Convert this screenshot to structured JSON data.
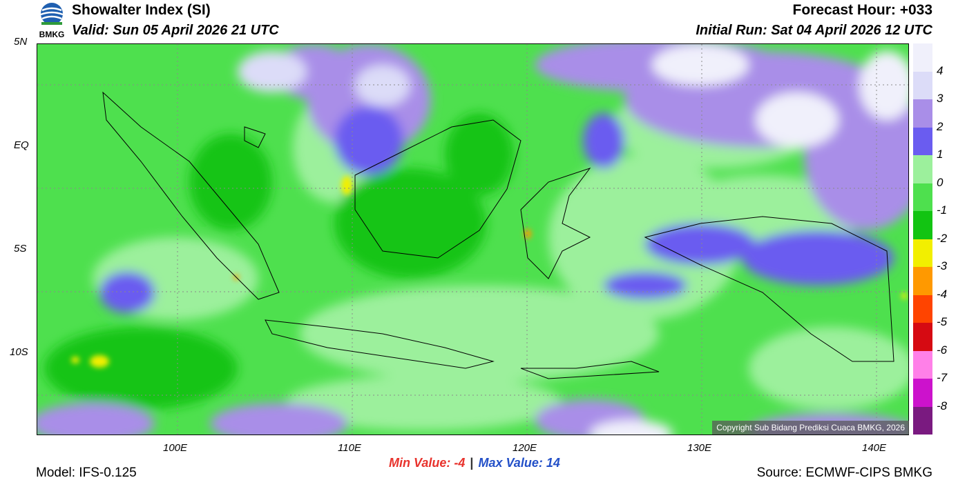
{
  "header": {
    "title": "Showalter Index (SI)",
    "valid": "Valid: Sun 05 April 2026 21 UTC",
    "forecast_hour": "Forecast Hour: +033",
    "initial_run": "Initial Run: Sat 04 April 2026 12 UTC"
  },
  "logo": {
    "text": "BMKG"
  },
  "map": {
    "lat_labels": [
      "5N",
      "EQ",
      "5S",
      "10S"
    ],
    "lon_labels": [
      "100E",
      "110E",
      "120E",
      "130E",
      "140E"
    ],
    "copyright": "Copyright Sub Bidang Prediksi Cuaca BMKG, 2026"
  },
  "colorbar": {
    "levels": [
      {
        "label": "4",
        "color": "#f0f0fb"
      },
      {
        "label": "3",
        "color": "#dcdcf8"
      },
      {
        "label": "2",
        "color": "#a98ee8"
      },
      {
        "label": "1",
        "color": "#6a5cf0"
      },
      {
        "label": "0",
        "color": "#9cf09c"
      },
      {
        "label": "-1",
        "color": "#4ee04e"
      },
      {
        "label": "-2",
        "color": "#12c412"
      },
      {
        "label": "-3",
        "color": "#f2ef00"
      },
      {
        "label": "-4",
        "color": "#ff9900"
      },
      {
        "label": "-5",
        "color": "#ff4400"
      },
      {
        "label": "-6",
        "color": "#d60a12"
      },
      {
        "label": "-7",
        "color": "#ff80e8"
      },
      {
        "label": "-8",
        "color": "#cc12cc"
      },
      {
        "label": "",
        "color": "#7a1a80"
      }
    ]
  },
  "stats": {
    "min_label": "Min Value:",
    "min_value": "-4",
    "separator": "|",
    "max_label": "Max Value:",
    "max_value": "14"
  },
  "footer": {
    "model": "Model: IFS-0.125",
    "source": "Source: ECMWF-CIPS BMKG"
  }
}
